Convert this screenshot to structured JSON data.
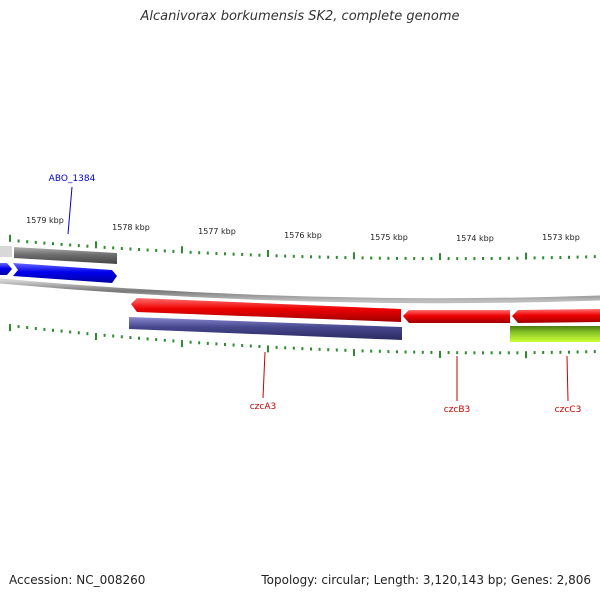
{
  "title": "Alcanivorax borkumensis SK2, complete genome",
  "footer": {
    "accession": "Accession: NC_008260",
    "summary": "Topology: circular; Length: 3,120,143 bp; Genes: 2,806"
  },
  "colors": {
    "axis": "#8a8a8a",
    "tick": "#2e8b2e",
    "forward_gene": "#0000ee",
    "reverse_gene": "#ee0000",
    "cds_dark": "#46468c",
    "cds_gray": "#6e6e6e",
    "cds_green": "#7fbf1f",
    "label_blue": "#0000cc",
    "label_red": "#cc0000"
  },
  "scale_ticks": [
    {
      "label": "1579 kbp",
      "kbp": 1579
    },
    {
      "label": "1578 kbp",
      "kbp": 1578
    },
    {
      "label": "1577 kbp",
      "kbp": 1577
    },
    {
      "label": "1576 kbp",
      "kbp": 1576
    },
    {
      "label": "1575 kbp",
      "kbp": 1575
    },
    {
      "label": "1574 kbp",
      "kbp": 1574
    },
    {
      "label": "1573 kbp",
      "kbp": 1573
    }
  ],
  "genes": [
    {
      "name": "ABO_1384",
      "strand": "forward",
      "label_color": "label_blue"
    },
    {
      "name": "czcA3",
      "strand": "reverse",
      "label_color": "label_red"
    },
    {
      "name": "czcB3",
      "strand": "reverse",
      "label_color": "label_red"
    },
    {
      "name": "czcC3",
      "strand": "reverse",
      "label_color": "label_red"
    }
  ]
}
